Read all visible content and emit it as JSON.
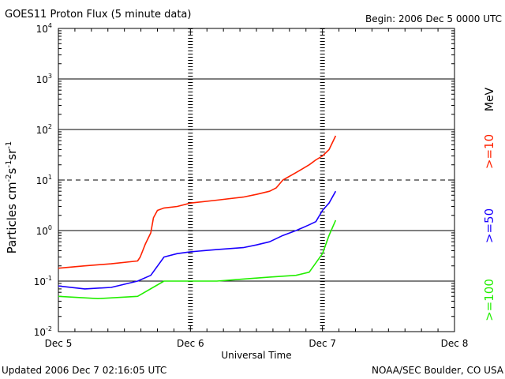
{
  "header": {
    "title": "GOES11 Proton Flux (5 minute data)",
    "begin": "Begin: 2006 Dec 5 0000 UTC"
  },
  "footer": {
    "updated": "Updated 2006 Dec  7 02:16:05 UTC",
    "source": "NOAA/SEC Boulder, CO USA"
  },
  "colors": {
    "ge10": "#ff2200",
    "ge50": "#1a00ff",
    "ge100": "#22ee00",
    "axis": "#000000"
  },
  "chart_data": {
    "type": "line",
    "title": "GOES11 Proton Flux (5 minute data)",
    "xlabel": "Universal Time",
    "ylabel_parts": [
      "Particles cm",
      "-2",
      "s",
      "-1",
      "sr",
      "-1"
    ],
    "unit_label": "MeV",
    "x_ticks": [
      "Dec 5",
      "Dec 6",
      "Dec 7",
      "Dec 8"
    ],
    "xlim_days": [
      0,
      3
    ],
    "y_scale": "log",
    "ylim": [
      0.01,
      10000
    ],
    "y_ticks": [
      {
        "base": "10",
        "exp": "-2",
        "value": 0.01
      },
      {
        "base": "10",
        "exp": "-1",
        "value": 0.1
      },
      {
        "base": "10",
        "exp": "0",
        "value": 1
      },
      {
        "base": "10",
        "exp": "1",
        "value": 10
      },
      {
        "base": "10",
        "exp": "2",
        "value": 100
      },
      {
        "base": "10",
        "exp": "3",
        "value": 1000
      },
      {
        "base": "10",
        "exp": "4",
        "value": 10000
      }
    ],
    "dashed_threshold": 10,
    "grid_major": [
      0.1,
      1,
      100,
      1000
    ],
    "series": [
      {
        "name": ">=10",
        "color": "#ff2200",
        "x_days": [
          0,
          0.2,
          0.4,
          0.6,
          0.62,
          0.66,
          0.7,
          0.72,
          0.75,
          0.8,
          0.9,
          1.0,
          1.2,
          1.4,
          1.5,
          1.6,
          1.65,
          1.7,
          1.8,
          1.9,
          1.95,
          2.0,
          2.05,
          2.1
        ],
        "y": [
          0.18,
          0.2,
          0.22,
          0.25,
          0.3,
          0.55,
          0.9,
          1.8,
          2.5,
          2.8,
          3.0,
          3.5,
          4.0,
          4.6,
          5.2,
          6.0,
          7.0,
          10.0,
          14.0,
          20.0,
          25.0,
          30.0,
          40.0,
          75.0
        ]
      },
      {
        "name": ">=50",
        "color": "#1a00ff",
        "x_days": [
          0,
          0.2,
          0.4,
          0.6,
          0.7,
          0.8,
          0.9,
          1.0,
          1.2,
          1.4,
          1.5,
          1.6,
          1.7,
          1.8,
          1.9,
          1.95,
          2.0,
          2.05,
          2.1
        ],
        "y": [
          0.08,
          0.07,
          0.075,
          0.1,
          0.13,
          0.3,
          0.35,
          0.38,
          0.42,
          0.46,
          0.52,
          0.6,
          0.8,
          1.0,
          1.3,
          1.5,
          2.5,
          3.5,
          6.0
        ]
      },
      {
        "name": ">=100",
        "color": "#22ee00",
        "x_days": [
          0,
          0.3,
          0.6,
          0.8,
          1.0,
          1.2,
          1.4,
          1.6,
          1.8,
          1.9,
          2.0,
          2.05,
          2.1
        ],
        "y": [
          0.05,
          0.045,
          0.05,
          0.1,
          0.1,
          0.1,
          0.11,
          0.12,
          0.13,
          0.15,
          0.35,
          0.8,
          1.6
        ]
      }
    ]
  }
}
